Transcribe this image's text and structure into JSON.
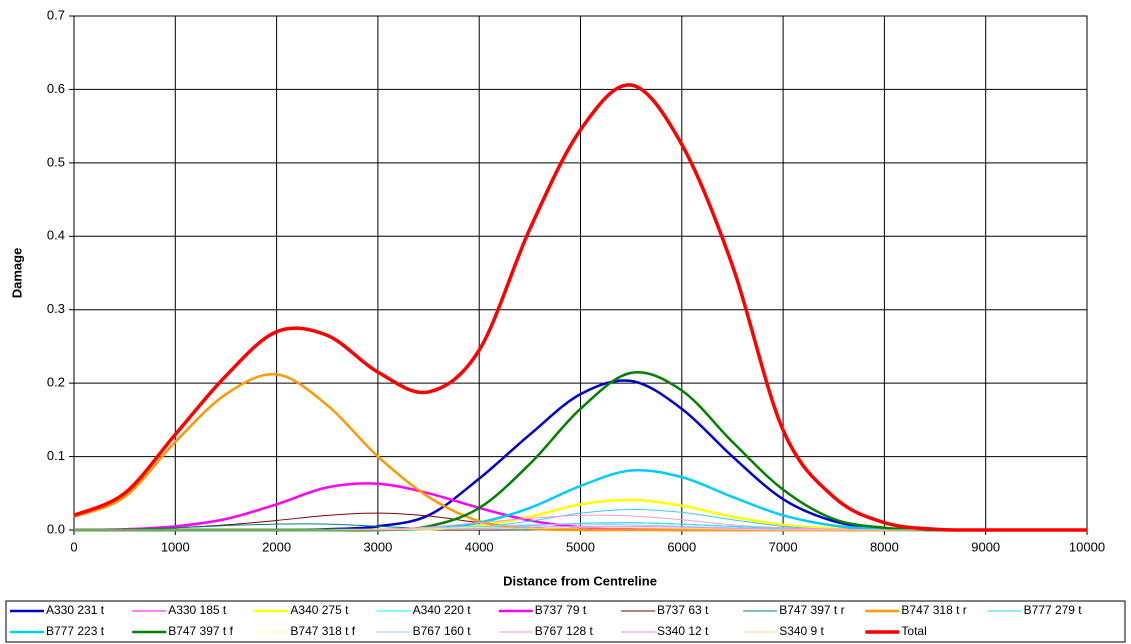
{
  "chart_data": {
    "type": "line",
    "x_label": "Distance from Centreline",
    "y_label": "Damage",
    "x": [
      0,
      500,
      1000,
      1500,
      2000,
      2500,
      3000,
      3500,
      4000,
      4500,
      5000,
      5500,
      6000,
      6500,
      7000,
      7500,
      8000,
      8500,
      9000,
      9500,
      10000
    ],
    "xlim": [
      0,
      10000
    ],
    "xticks": [
      0,
      1000,
      2000,
      3000,
      4000,
      5000,
      6000,
      7000,
      8000,
      9000,
      10000
    ],
    "ylim": [
      0,
      0.7
    ],
    "yticks": [
      {
        "value": 0,
        "label": "0.0"
      },
      0.1,
      0.2,
      0.3,
      0.4,
      0.5,
      0.6,
      0.7
    ],
    "grid": true,
    "legend": "bottom",
    "series": [
      {
        "name": "A330 231 t",
        "color": "#0000cc",
        "width": 2.5,
        "values": [
          0,
          0,
          0,
          0,
          0,
          0.001,
          0.005,
          0.02,
          0.07,
          0.13,
          0.185,
          0.203,
          0.165,
          0.1,
          0.042,
          0.012,
          0.002,
          0,
          0,
          0,
          0
        ]
      },
      {
        "name": "A330 185 t",
        "color": "#ff00ff",
        "width": 1,
        "values": [
          0,
          0,
          0,
          0,
          0,
          0,
          0,
          0.001,
          0.003,
          0.006,
          0.009,
          0.01,
          0.008,
          0.005,
          0.002,
          0.001,
          0,
          0,
          0,
          0,
          0
        ]
      },
      {
        "name": "A340 275 t",
        "color": "#ffff00",
        "width": 2.5,
        "values": [
          0,
          0,
          0,
          0,
          0,
          0,
          0,
          0.001,
          0.006,
          0.018,
          0.035,
          0.041,
          0.033,
          0.018,
          0.007,
          0.002,
          0,
          0,
          0,
          0,
          0
        ]
      },
      {
        "name": "A340 220 t",
        "color": "#00ffff",
        "width": 1,
        "values": [
          0,
          0,
          0,
          0,
          0,
          0,
          0,
          0.001,
          0.003,
          0.006,
          0.009,
          0.01,
          0.008,
          0.005,
          0.002,
          0.001,
          0,
          0,
          0,
          0,
          0
        ]
      },
      {
        "name": "B737 79 t",
        "color": "#ff00ff",
        "width": 2.5,
        "values": [
          0,
          0.001,
          0.005,
          0.015,
          0.035,
          0.058,
          0.063,
          0.05,
          0.03,
          0.013,
          0.004,
          0.001,
          0,
          0,
          0,
          0,
          0,
          0,
          0,
          0,
          0
        ]
      },
      {
        "name": "B737 63 t",
        "color": "#800000",
        "width": 1,
        "values": [
          0,
          0.001,
          0.003,
          0.007,
          0.013,
          0.02,
          0.023,
          0.019,
          0.01,
          0.003,
          0.001,
          0,
          0,
          0,
          0,
          0,
          0,
          0,
          0,
          0,
          0
        ]
      },
      {
        "name": "B747 397 t r",
        "color": "#008080",
        "width": 1,
        "values": [
          0,
          0.001,
          0.003,
          0.006,
          0.008,
          0.008,
          0.005,
          0.002,
          0.001,
          0,
          0,
          0,
          0,
          0,
          0,
          0,
          0,
          0,
          0,
          0,
          0
        ]
      },
      {
        "name": "B747 318 t r",
        "color": "#ff9900",
        "width": 2.5,
        "values": [
          0.018,
          0.045,
          0.12,
          0.185,
          0.212,
          0.17,
          0.1,
          0.045,
          0.012,
          0.002,
          0,
          0,
          0,
          0,
          0,
          0,
          0,
          0,
          0,
          0,
          0
        ]
      },
      {
        "name": "B777 279 t",
        "color": "#33ccff",
        "width": 1,
        "values": [
          0,
          0,
          0,
          0,
          0,
          0,
          0,
          0.001,
          0.004,
          0.012,
          0.023,
          0.028,
          0.024,
          0.014,
          0.005,
          0.001,
          0,
          0,
          0,
          0,
          0
        ]
      },
      {
        "name": "B777 223 t",
        "color": "#00ccff",
        "width": 2.5,
        "values": [
          0,
          0,
          0,
          0,
          0,
          0,
          0,
          0.002,
          0.01,
          0.03,
          0.06,
          0.081,
          0.072,
          0.045,
          0.02,
          0.006,
          0.001,
          0,
          0,
          0,
          0
        ]
      },
      {
        "name": "B747 397 t f",
        "color": "#008000",
        "width": 2.5,
        "values": [
          0,
          0,
          0,
          0,
          0,
          0,
          0,
          0.005,
          0.03,
          0.09,
          0.165,
          0.214,
          0.19,
          0.12,
          0.055,
          0.015,
          0.003,
          0,
          0,
          0,
          0
        ]
      },
      {
        "name": "B747 318 t f",
        "color": "#ffff99",
        "width": 1,
        "values": [
          0,
          0,
          0,
          0,
          0,
          0,
          0.001,
          0.002,
          0.003,
          0.004,
          0.005,
          0.005,
          0.004,
          0.002,
          0.001,
          0,
          0,
          0,
          0,
          0,
          0
        ]
      },
      {
        "name": "B767 160 t",
        "color": "#99ccff",
        "width": 1,
        "values": [
          0,
          0,
          0,
          0,
          0,
          0,
          0.001,
          0.003,
          0.005,
          0.007,
          0.008,
          0.007,
          0.005,
          0.003,
          0.001,
          0,
          0,
          0,
          0,
          0,
          0
        ]
      },
      {
        "name": "B767 128 t",
        "color": "#ff99cc",
        "width": 1,
        "values": [
          0,
          0,
          0,
          0,
          0,
          0,
          0.001,
          0.004,
          0.01,
          0.016,
          0.02,
          0.019,
          0.014,
          0.007,
          0.003,
          0.001,
          0,
          0,
          0,
          0,
          0
        ]
      },
      {
        "name": "S340 12 t",
        "color": "#cc99ff",
        "width": 1,
        "values": [
          0,
          0,
          0,
          0,
          0,
          0,
          0,
          0.001,
          0.002,
          0.004,
          0.005,
          0.005,
          0.004,
          0.002,
          0.001,
          0,
          0,
          0,
          0,
          0,
          0
        ]
      },
      {
        "name": "S340 9 t",
        "color": "#ffcc99",
        "width": 1,
        "values": [
          0,
          0,
          0,
          0,
          0,
          0,
          0,
          0.001,
          0.001,
          0.002,
          0.003,
          0.003,
          0.002,
          0.001,
          0,
          0,
          0,
          0,
          0,
          0,
          0
        ]
      },
      {
        "name": "Total",
        "color": "#ff0000",
        "width": 3.5,
        "values": [
          0.02,
          0.05,
          0.13,
          0.21,
          0.27,
          0.265,
          0.215,
          0.188,
          0.245,
          0.41,
          0.545,
          0.606,
          0.525,
          0.36,
          0.136,
          0.045,
          0.01,
          0.001,
          0,
          0,
          0
        ]
      }
    ]
  }
}
